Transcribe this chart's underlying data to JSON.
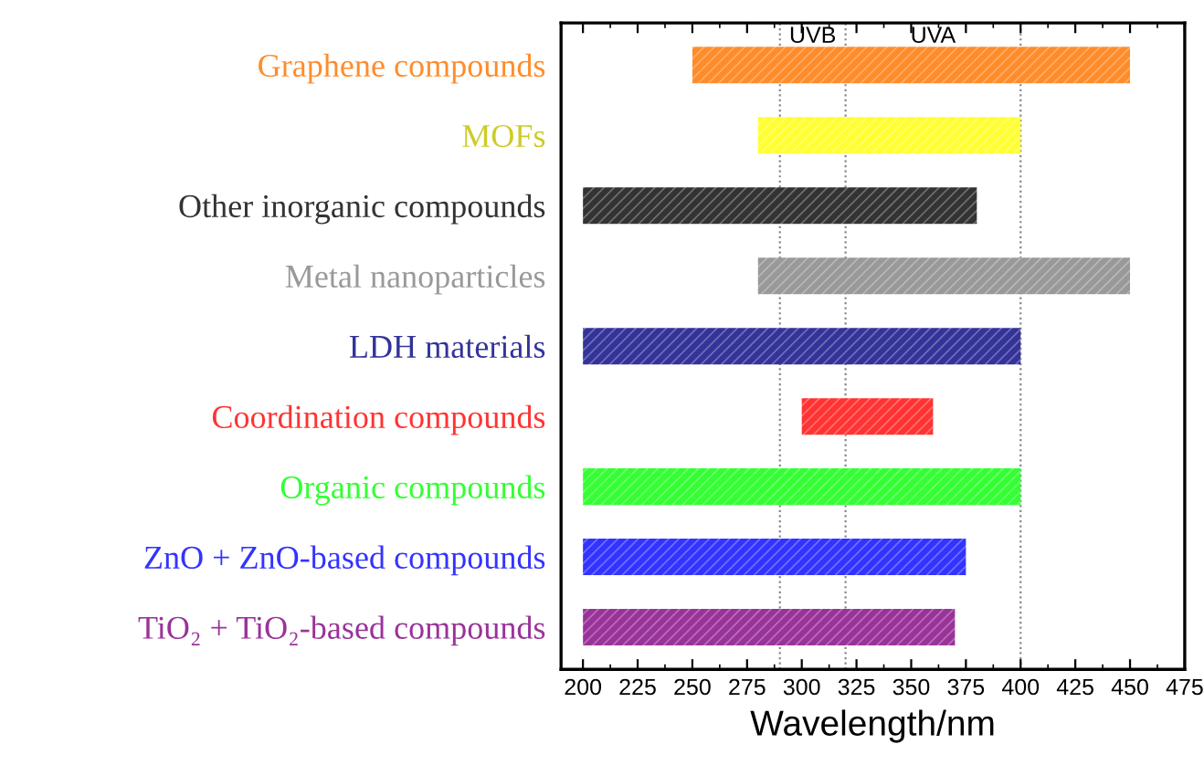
{
  "chart_data": {
    "type": "bar",
    "orientation": "horizontal",
    "categories": [
      "Graphene compounds",
      "MOFs",
      "Other inorganic compounds",
      "Metal nanoparticles",
      "LDH materials",
      "Coordination compounds",
      "Organic compounds",
      "ZnO + ZnO-based compounds",
      "TiO₂ + TiO₂-based compounds"
    ],
    "base": [
      250,
      280,
      200,
      280,
      200,
      300,
      200,
      200,
      200
    ],
    "values": [
      200,
      120,
      180,
      170,
      200,
      60,
      200,
      175,
      170
    ],
    "colors": [
      "#ff8c2a",
      "#ffff33",
      "#333333",
      "#999999",
      "#333399",
      "#ff3333",
      "#33ff33",
      "#3333ff",
      "#993399"
    ],
    "xlabel": "Wavelength/nm",
    "xlim": [
      190,
      475
    ],
    "xticks": [
      200,
      225,
      250,
      275,
      300,
      325,
      350,
      375,
      400,
      425,
      450,
      475
    ],
    "ref_lines": [
      {
        "axis": "x",
        "value": 290,
        "color": "#888888",
        "line_style": "dotted"
      },
      {
        "axis": "x",
        "value": 320,
        "color": "#888888",
        "line_style": "dotted"
      },
      {
        "axis": "x",
        "value": 400,
        "color": "#888888",
        "line_style": "dotted"
      }
    ],
    "annotations": [
      "UVB",
      "UVA"
    ],
    "grid": false,
    "legend": false
  }
}
